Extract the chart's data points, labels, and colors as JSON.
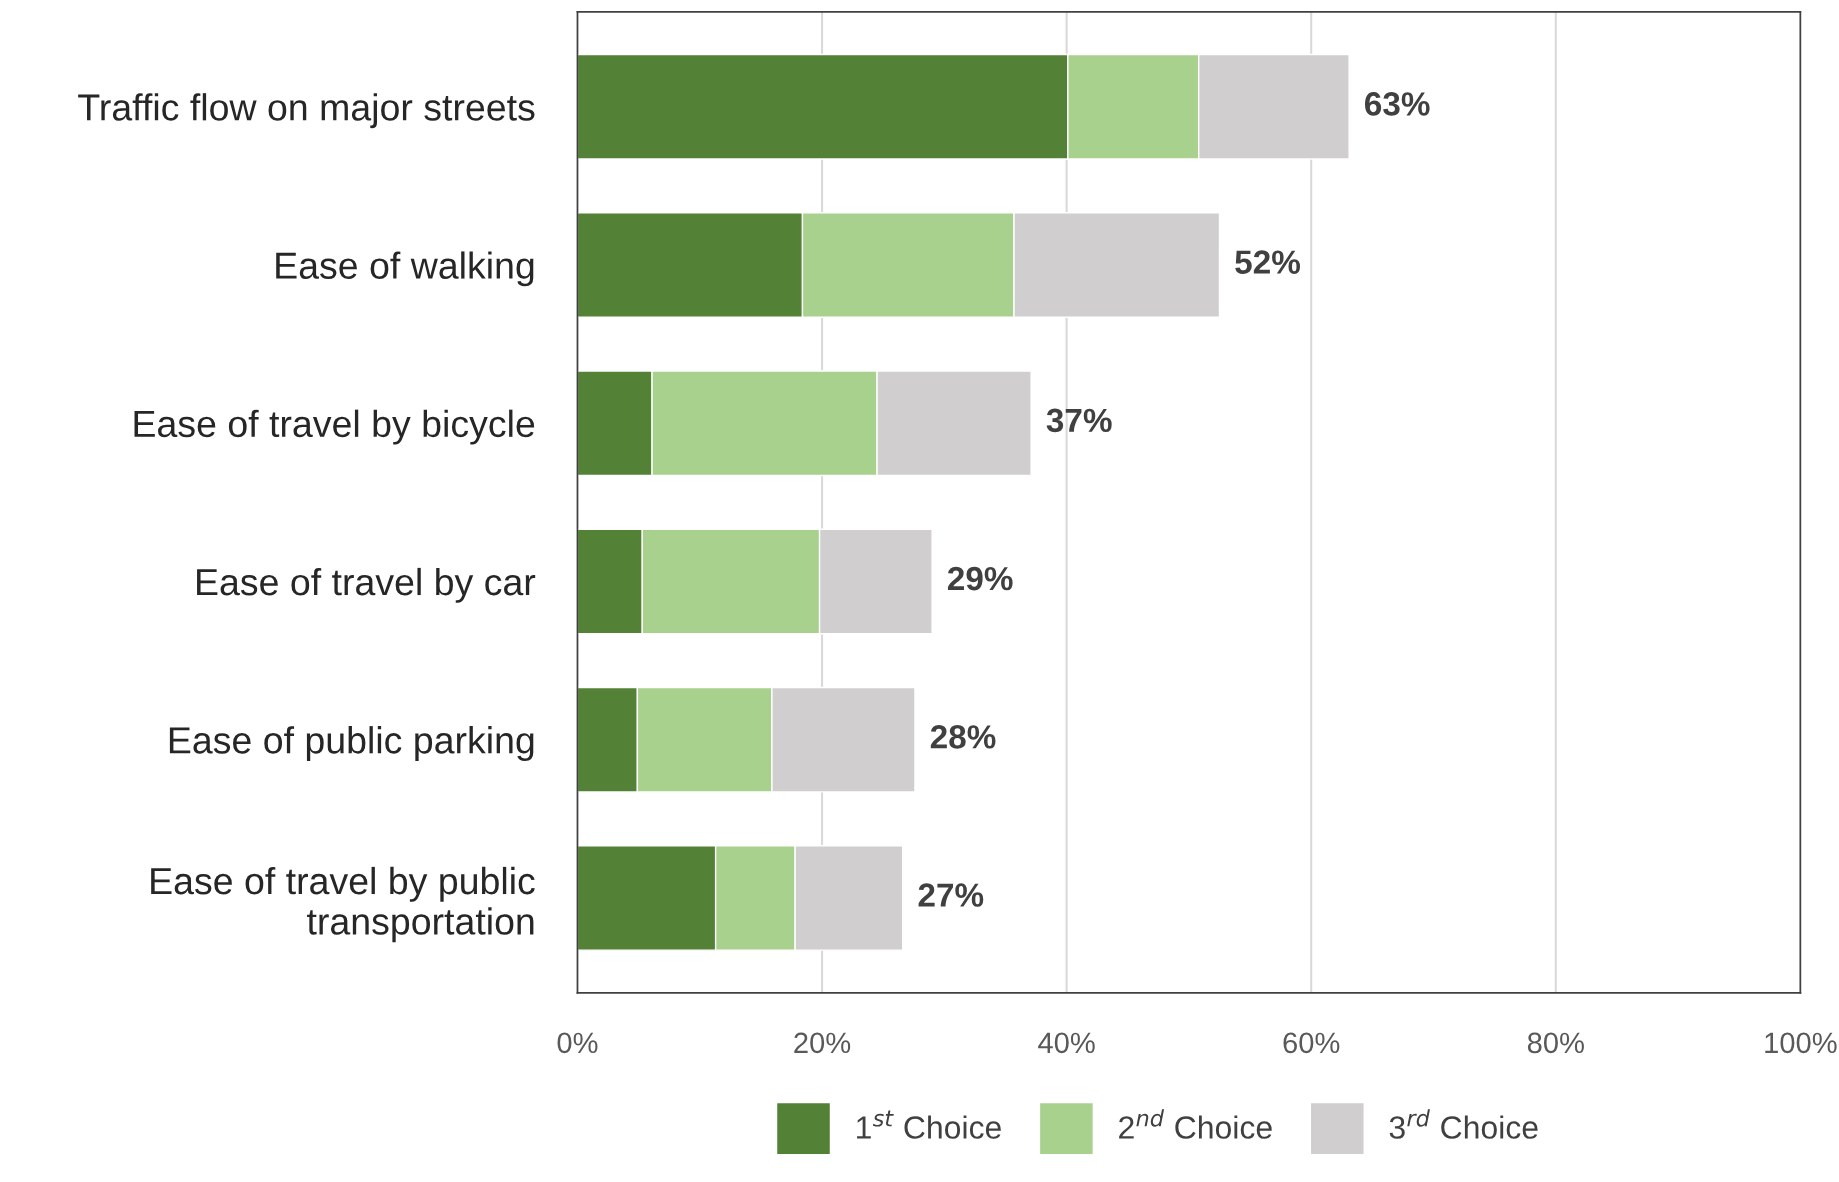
{
  "chart_data": {
    "type": "bar",
    "orientation": "horizontal",
    "stacked": true,
    "categories": [
      "Traffic flow on major streets",
      "Ease of walking",
      "Ease of travel by bicycle",
      "Ease of travel by car",
      "Ease of public parking",
      "Ease of travel by public\ntransportation"
    ],
    "series": [
      {
        "name": "1$^{st}$ Choice",
        "color": "#538135",
        "values": [
          40.1,
          18.4,
          6.1,
          5.3,
          4.9,
          11.3
        ]
      },
      {
        "name": "2$^{nd}$ Choice",
        "color": "#a9d18e",
        "values": [
          10.7,
          17.3,
          18.4,
          14.5,
          11.0,
          6.5
        ]
      },
      {
        "name": "3$^{rd}$ Choice",
        "color": "#d0cece",
        "values": [
          12.3,
          16.8,
          12.6,
          9.2,
          11.7,
          8.8
        ]
      }
    ],
    "totals": [
      "63%",
      "52%",
      "37%",
      "29%",
      "28%",
      "27%"
    ],
    "xlim": [
      0,
      100
    ],
    "xticks": [
      {
        "value": 0,
        "label": "0%"
      },
      {
        "value": 20,
        "label": "20%"
      },
      {
        "value": 40,
        "label": "40%"
      },
      {
        "value": 60,
        "label": "60%"
      },
      {
        "value": 80,
        "label": "80%"
      },
      {
        "value": 100,
        "label": "100%"
      }
    ],
    "grid": "x",
    "legend": "bottom"
  }
}
